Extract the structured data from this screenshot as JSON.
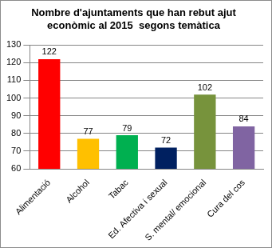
{
  "chart_data": {
    "type": "bar",
    "title": [
      "Nombre d'ajuntaments que han rebut ajut",
      "econòmic al 2015  segons temàtica"
    ],
    "categories": [
      "Alimentació",
      "Alcohol",
      "Tabac",
      "Ed. Afectiva i sexual",
      "S. mental/ emocional",
      "Cura del cos"
    ],
    "values": [
      122,
      77,
      79,
      72,
      102,
      84
    ],
    "colors": [
      "#ff0000",
      "#ffc000",
      "#00b050",
      "#002060",
      "#77933c",
      "#8064a2"
    ],
    "ylim": [
      60,
      130
    ],
    "yticks": [
      60,
      70,
      80,
      90,
      100,
      110,
      120,
      130
    ],
    "grid": true,
    "data_labels": true
  }
}
